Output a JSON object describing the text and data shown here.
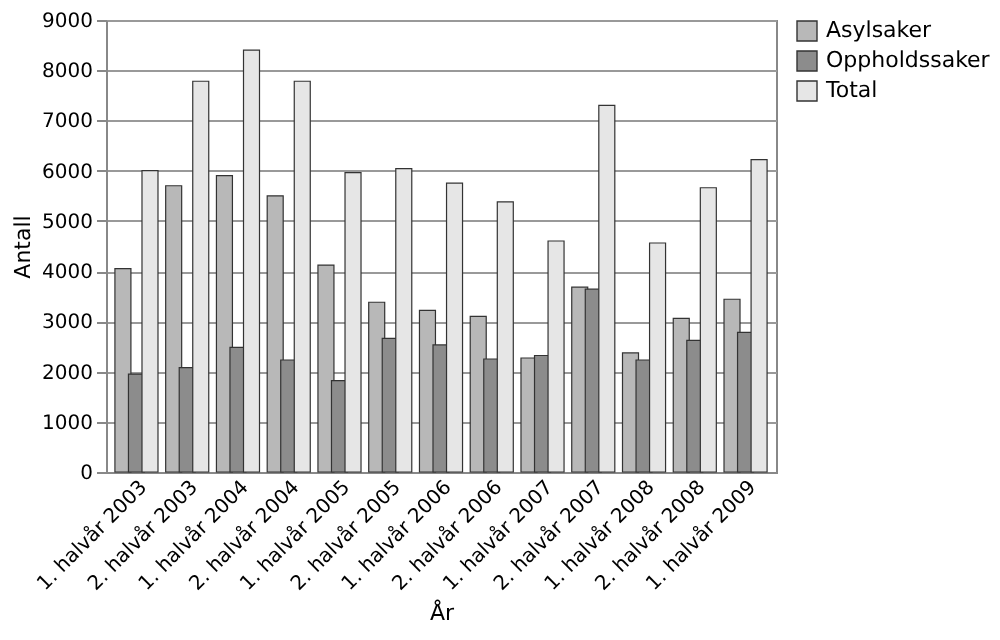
{
  "chart_data": {
    "type": "bar",
    "xlabel": "År",
    "ylabel": "Antall",
    "categories": [
      "1. halvår 2003",
      "2. halvår 2003",
      "1. halvår 2004",
      "2. halvår 2004",
      "1. halvår 2005",
      "2. halvår 2005",
      "1. halvår 2006",
      "2. halvår 2006",
      "1. halvår 2007",
      "2. halvår 2007",
      "1. halvår 2008",
      "2. halvår 2008",
      "1. halvår 2009"
    ],
    "series": [
      {
        "name": "Asylsaker",
        "color": "#b8b8b8",
        "values": [
          4050,
          5700,
          5900,
          5500,
          4120,
          3380,
          3220,
          3100,
          2270,
          3680,
          2370,
          3060,
          3440
        ]
      },
      {
        "name": "Oppholdssaker",
        "color": "#8c8c8c",
        "values": [
          1950,
          2080,
          2480,
          2230,
          1820,
          2660,
          2530,
          2250,
          2320,
          3640,
          2230,
          2620,
          2780
        ]
      },
      {
        "name": "Total",
        "color": "#e6e6e6",
        "values": [
          6000,
          7780,
          8400,
          7780,
          5960,
          6040,
          5750,
          5380,
          4600,
          7300,
          4560,
          5660,
          6220
        ]
      }
    ],
    "ylim": [
      0,
      9000
    ],
    "yticks": [
      0,
      1000,
      2000,
      3000,
      4000,
      5000,
      6000,
      7000,
      8000,
      9000
    ],
    "grid": "y",
    "legend": "right"
  }
}
